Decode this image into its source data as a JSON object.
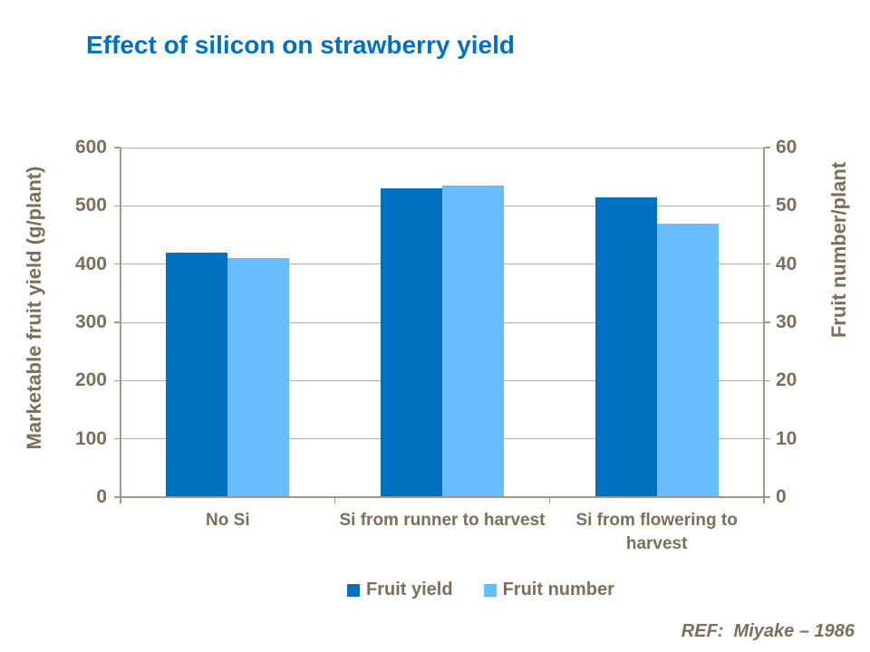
{
  "slide": {
    "title": "Effect of silicon on strawberry yield",
    "reference": "REF:  Miyake – 1986"
  },
  "chart_data": {
    "type": "bar",
    "title": "Effect of silicon on strawberry yield",
    "categories": [
      "No Si",
      "Si from runner to harvest",
      "Si from flowering to harvest"
    ],
    "series": [
      {
        "name": "Fruit yield",
        "axis": "left",
        "color": "#0070BF",
        "values": [
          420,
          530,
          515
        ]
      },
      {
        "name": "Fruit number",
        "axis": "right",
        "color": "#68BCFB",
        "values": [
          41,
          53.5,
          47
        ]
      }
    ],
    "axes": {
      "left": {
        "label": "Marketable fruit yield (g/plant)",
        "min": 0,
        "max": 600,
        "step": 100
      },
      "right": {
        "label": "Fruit number/plant",
        "min": 0,
        "max": 60,
        "step": 10
      }
    },
    "grid": true,
    "legend_position": "bottom",
    "styles": {
      "title_color": "#0070C0",
      "text_color": "#7D6E5B",
      "grid_color": "#B3ABA1",
      "axis_color": "#A29889"
    }
  }
}
